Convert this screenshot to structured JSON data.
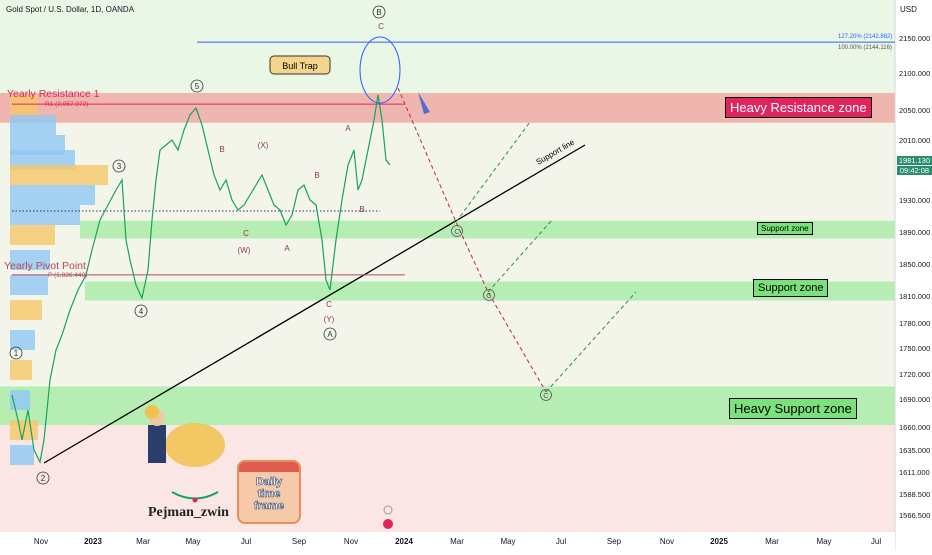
{
  "header": {
    "symbol_title": "Gold Spot / U.S. Dollar, 1D, OANDA",
    "currency": "USD"
  },
  "chart_data": {
    "type": "line",
    "ylim": [
      1555,
      2175
    ],
    "y_ticks": [
      "2150.000",
      "2100.000",
      "2050.000",
      "2010.000",
      "1930.000",
      "1890.000",
      "1850.000",
      "1810.000",
      "1780.000",
      "1750.000",
      "1720.000",
      "1690.000",
      "1660.000",
      "1635.000",
      "1611.000",
      "1588.500",
      "1566.500"
    ],
    "y_tick_values": [
      2150,
      2100,
      2050,
      2010,
      1930,
      1890,
      1850,
      1810,
      1780,
      1750,
      1720,
      1690,
      1660,
      1635,
      1611,
      1588.5,
      1566.5
    ],
    "x_ticks": [
      "Nov",
      "2023",
      "Mar",
      "May",
      "Jul",
      "Sep",
      "Nov",
      "2024",
      "Mar",
      "May",
      "Jul",
      "Sep",
      "Nov",
      "2025",
      "Mar",
      "May",
      "Jul"
    ],
    "current_price": "1981.130",
    "countdown": "09:42:08",
    "fib_levels": [
      {
        "label": "127.20% (2142.862)",
        "value": 2142.862
      },
      {
        "label": "100.00% (2144.116)",
        "value": 2144.116
      }
    ],
    "pivot_levels": [
      {
        "name": "Yearly Resistance 1",
        "label": "R1 (2,057.972)",
        "value": 2057.972
      },
      {
        "name": "Yearly Pivot Point",
        "label": "P (1,836.448)",
        "value": 1836.448
      }
    ],
    "zones": [
      {
        "name": "Heavy Resistance zone",
        "from": 2033,
        "to": 2073,
        "color": "#f28b8b"
      },
      {
        "name": "Support zone",
        "from": 1882,
        "to": 1904,
        "color": "#8de88d"
      },
      {
        "name": "Support zone",
        "from": 1805,
        "to": 1828,
        "color": "#8de88d"
      },
      {
        "name": "Heavy Support zone",
        "from": 1662,
        "to": 1705,
        "color": "#8de88d"
      }
    ],
    "wave_labels": [
      {
        "text": "1",
        "circled": true
      },
      {
        "text": "2",
        "circled": true
      },
      {
        "text": "3",
        "circled": true
      },
      {
        "text": "4",
        "circled": true
      },
      {
        "text": "5",
        "circled": true
      },
      {
        "text": "B",
        "circled": true
      },
      {
        "text": "A",
        "circled": true
      },
      {
        "text": "C",
        "circled": true
      },
      {
        "text": "(W)",
        "circled": false
      },
      {
        "text": "(X)",
        "circled": false
      },
      {
        "text": "(Y)",
        "circled": false
      }
    ],
    "annotations": [
      "Bull Trap",
      "Support line"
    ]
  },
  "zone_labels": {
    "resistance": "Heavy Resistance zone",
    "support_1": "Support zone",
    "support_2": "Support zone",
    "heavy_support": "Heavy Support zone"
  },
  "author": "Pejman_zwin",
  "daily_card": {
    "line1": "Daily",
    "line2": "time",
    "line3": "frame"
  }
}
